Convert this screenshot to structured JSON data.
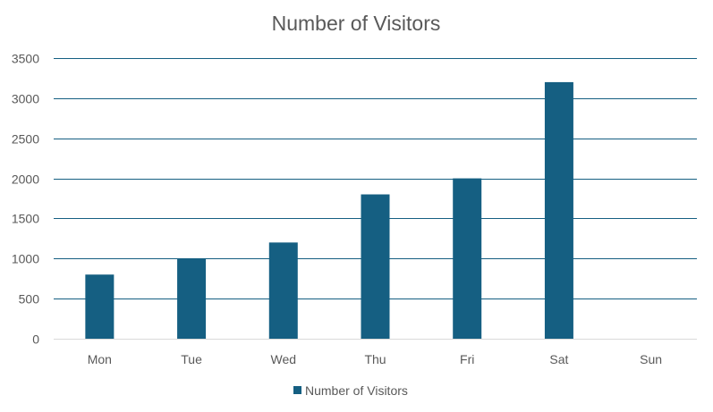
{
  "chart_data": {
    "type": "bar",
    "title": "Number of Visitors",
    "xlabel": "",
    "ylabel": "",
    "categories": [
      "Mon",
      "Tue",
      "Wed",
      "Thu",
      "Fri",
      "Sat",
      "Sun"
    ],
    "series": [
      {
        "name": "Number of Visitors",
        "values": [
          800,
          1000,
          1200,
          1800,
          2000,
          3200,
          0
        ],
        "color": "#155f82"
      }
    ],
    "ylim": [
      0,
      3500
    ],
    "yticks": [
      0,
      500,
      1000,
      1500,
      2000,
      2500,
      3000,
      3500
    ],
    "grid": true,
    "gridline_color": "#155f82",
    "baseline_color": "#d9d9d9",
    "legend": {
      "position": "bottom",
      "entries": [
        "Number of Visitors"
      ]
    }
  }
}
